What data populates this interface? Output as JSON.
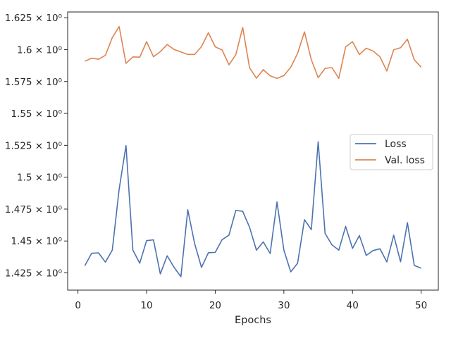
{
  "chart_data": {
    "type": "line",
    "xlabel": "Epochs",
    "ylabel": "",
    "title": "",
    "xlim": [
      -1.5,
      52.5
    ],
    "ylim": [
      1.4115,
      1.6295
    ],
    "x_ticks": [
      0,
      10,
      20,
      30,
      40,
      50
    ],
    "x_tick_labels": [
      "0",
      "10",
      "20",
      "30",
      "40",
      "50"
    ],
    "y_ticks": [
      1.425,
      1.45,
      1.475,
      1.5,
      1.525,
      1.55,
      1.575,
      1.6,
      1.625
    ],
    "y_tick_labels": [
      "1.425 × 10⁰",
      "1.45 × 10⁰",
      "1.475 × 10⁰",
      "1.5 × 10⁰",
      "1.525 × 10⁰",
      "1.55 × 10⁰",
      "1.575 × 10⁰",
      "1.6 × 10⁰",
      "1.625 × 10⁰"
    ],
    "grid": false,
    "legend_position": "right",
    "x": [
      1,
      2,
      3,
      4,
      5,
      6,
      7,
      8,
      9,
      10,
      11,
      12,
      13,
      14,
      15,
      16,
      17,
      18,
      19,
      20,
      21,
      22,
      23,
      24,
      25,
      26,
      27,
      28,
      29,
      30,
      31,
      32,
      33,
      34,
      35,
      36,
      37,
      38,
      39,
      40,
      41,
      42,
      43,
      44,
      45,
      46,
      47,
      48,
      49,
      50
    ],
    "series": [
      {
        "name": "Loss",
        "color": "#4c72b0",
        "values": [
          1.4306,
          1.4404,
          1.4407,
          1.4334,
          1.4428,
          1.4905,
          1.5248,
          1.4429,
          1.4326,
          1.4503,
          1.4509,
          1.4242,
          1.4384,
          1.4294,
          1.422,
          1.4745,
          1.448,
          1.4293,
          1.4408,
          1.4411,
          1.451,
          1.4546,
          1.474,
          1.4733,
          1.4608,
          1.4428,
          1.4493,
          1.4402,
          1.4806,
          1.4429,
          1.4258,
          1.4326,
          1.4667,
          1.4589,
          1.5278,
          1.456,
          1.447,
          1.4428,
          1.4614,
          1.4442,
          1.4543,
          1.4387,
          1.4425,
          1.4439,
          1.4336,
          1.4546,
          1.4337,
          1.4644,
          1.4308,
          1.4287
        ]
      },
      {
        "name": "Val. loss",
        "color": "#dd8452",
        "values": [
          1.5909,
          1.5933,
          1.5924,
          1.5955,
          1.6094,
          1.6181,
          1.5892,
          1.5943,
          1.5941,
          1.6062,
          1.5944,
          1.5984,
          1.604,
          1.6001,
          1.5982,
          1.5962,
          1.5962,
          1.6024,
          1.6132,
          1.6022,
          1.5997,
          1.5881,
          1.596,
          1.6174,
          1.5858,
          1.5776,
          1.5843,
          1.5795,
          1.5774,
          1.5797,
          1.5861,
          1.5971,
          1.6139,
          1.5921,
          1.578,
          1.5853,
          1.5859,
          1.5775,
          1.6022,
          1.6062,
          1.5961,
          1.6011,
          1.5989,
          1.5944,
          1.5832,
          1.5999,
          1.6015,
          1.6082,
          1.592,
          1.5862
        ]
      }
    ]
  }
}
